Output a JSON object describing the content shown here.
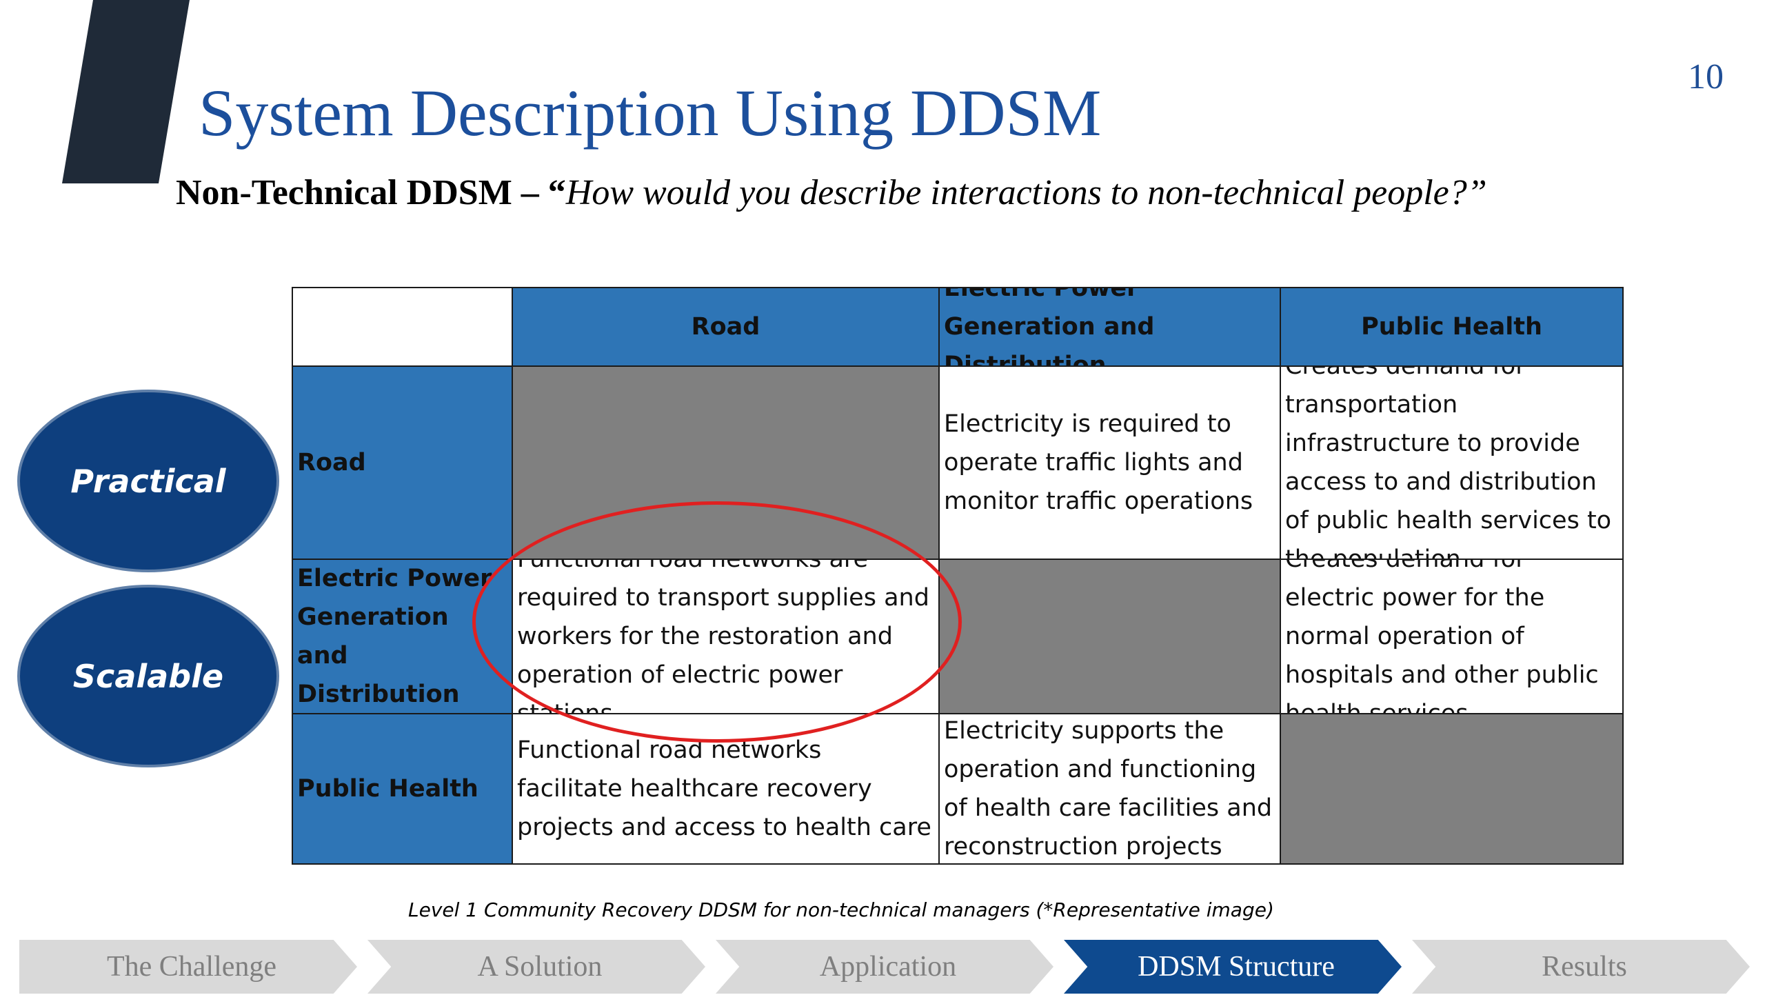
{
  "slide": {
    "page_number": "10",
    "title": "System Description Using DDSM",
    "subtitle_bold": "Non-Technical DDSM – “",
    "subtitle_italic": "How would you describe interactions to non-technical people?”"
  },
  "badges": {
    "practical": "Practical",
    "scalable": "Scalable"
  },
  "matrix": {
    "columns": [
      "Road",
      "Electric Power Generation and Distribution",
      "Public Health"
    ],
    "rows": [
      {
        "label": "Road",
        "cells": [
          "",
          "Electricity is required to operate traffic lights and monitor traffic operations",
          "Creates demand for transportation infrastructure to provide access to and distribution of public health services to the population"
        ]
      },
      {
        "label": "Electric Power Generation and Distribution",
        "cells": [
          "Functional road networks are required to transport supplies and workers for the restoration  and operation of electric power stations",
          "",
          "Creates demand for electric power for the normal operation of hospitals and other public health services"
        ]
      },
      {
        "label": "Public Health",
        "cells": [
          "Functional road networks facilitate healthcare recovery projects and access to health care",
          "Electricity supports the operation and functioning of health care facilities and reconstruction projects",
          ""
        ]
      }
    ]
  },
  "caption": "Level 1 Community Recovery DDSM for non-technical managers (*Representative image)",
  "nav": {
    "items": [
      "The Challenge",
      "A Solution",
      "Application",
      "DDSM Structure",
      "Results"
    ],
    "active": "DDSM Structure"
  },
  "colors": {
    "title": "#1c4f9c",
    "header_fill": "#2e75b6",
    "diagonal_fill": "#808080",
    "badge_fill": "#0e3f7e",
    "highlight_ring": "#e02020",
    "nav_active": "#0e4a8f",
    "nav_inactive": "#d9d9d9"
  }
}
